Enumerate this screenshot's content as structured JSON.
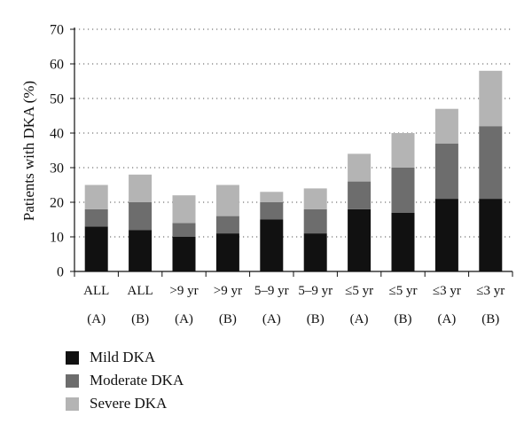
{
  "chart_data": {
    "type": "bar",
    "stacked": true,
    "ylabel": "Patients with DKA (%)",
    "ylim": [
      0,
      70
    ],
    "yticks": [
      0,
      10,
      20,
      30,
      40,
      50,
      60,
      70
    ],
    "grid": true,
    "legend_position": "bottom-left",
    "categories": [
      {
        "line1": "ALL",
        "line2": "(A)"
      },
      {
        "line1": "ALL",
        "line2": "(B)"
      },
      {
        "line1": ">9 yr",
        "line2": "(A)"
      },
      {
        "line1": ">9 yr",
        "line2": "(B)"
      },
      {
        "line1": "5–9 yr",
        "line2": "(A)"
      },
      {
        "line1": "5–9 yr",
        "line2": "(B)"
      },
      {
        "line1": "≤5 yr",
        "line2": "(A)"
      },
      {
        "line1": "≤5 yr",
        "line2": "(B)"
      },
      {
        "line1": "≤3 yr",
        "line2": "(A)"
      },
      {
        "line1": "≤3 yr",
        "line2": "(B)"
      }
    ],
    "series": [
      {
        "name": "Mild DKA",
        "color": "#111111",
        "values": [
          13,
          12,
          10,
          11,
          15,
          11,
          18,
          17,
          21,
          21
        ]
      },
      {
        "name": "Moderate DKA",
        "color": "#6d6d6d",
        "values": [
          5,
          8,
          4,
          5,
          5,
          7,
          8,
          13,
          16,
          21
        ]
      },
      {
        "name": "Severe DKA",
        "color": "#b4b4b4",
        "values": [
          7,
          8,
          8,
          9,
          3,
          6,
          8,
          10,
          10,
          16
        ]
      }
    ]
  }
}
